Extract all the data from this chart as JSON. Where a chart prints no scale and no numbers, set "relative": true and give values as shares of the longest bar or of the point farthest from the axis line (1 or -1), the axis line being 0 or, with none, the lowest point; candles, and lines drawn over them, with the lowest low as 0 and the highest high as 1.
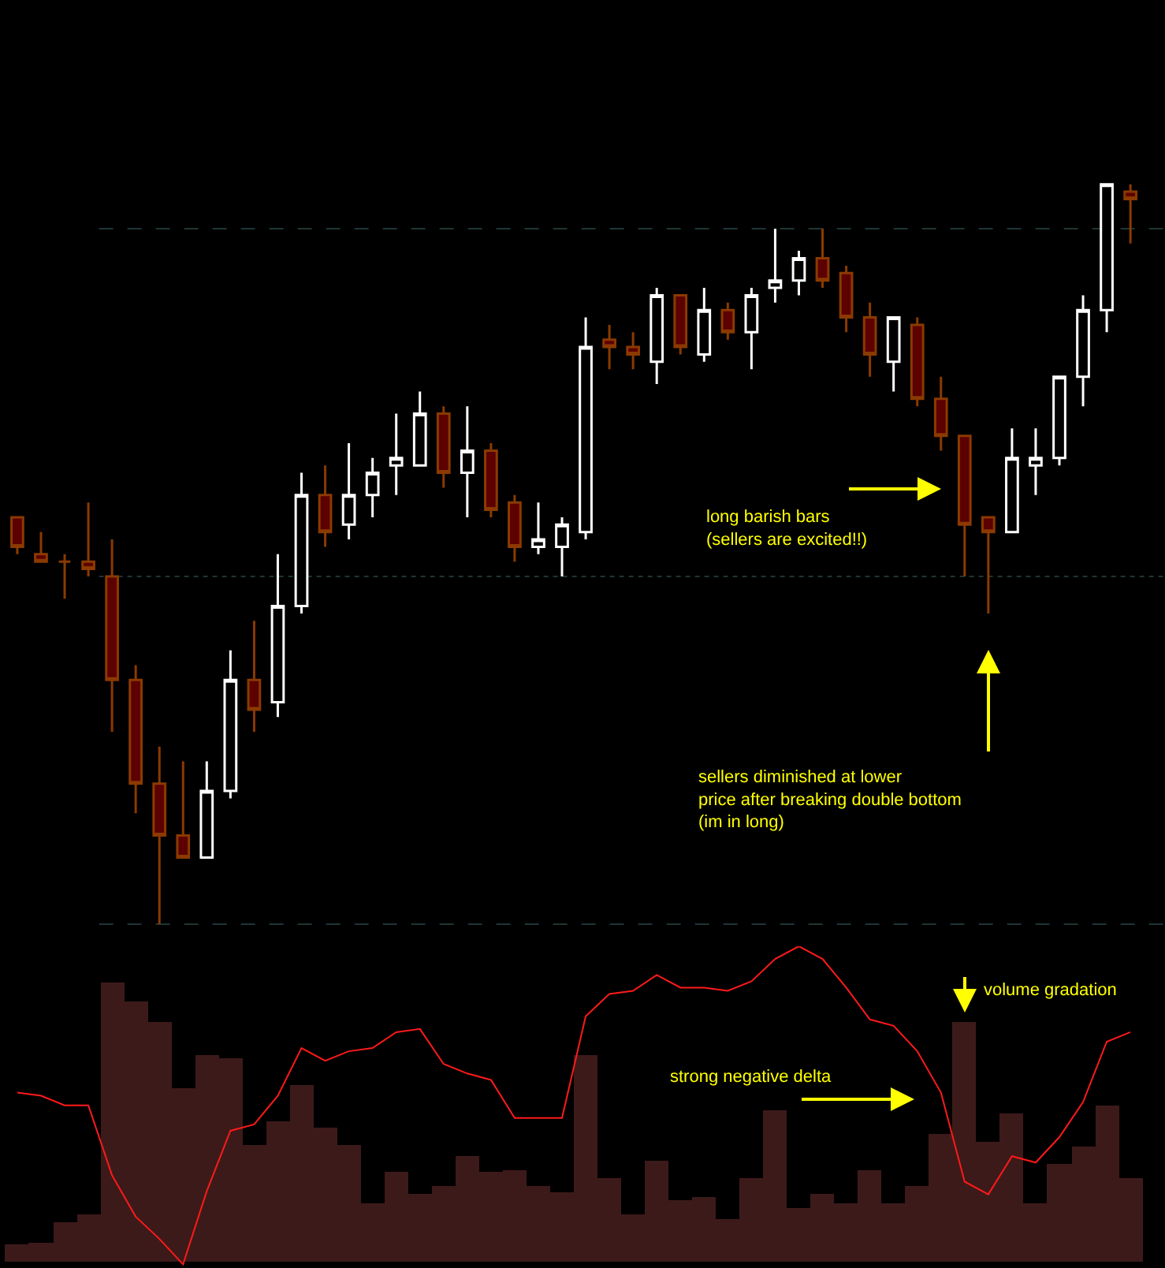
{
  "chart_data": [
    {
      "type": "candlestick",
      "relative": true,
      "categories": [
        null,
        null,
        null,
        null,
        null,
        null,
        null,
        null,
        null,
        null,
        null,
        null,
        null,
        null,
        null,
        null,
        null,
        null,
        null,
        null,
        null,
        null,
        null,
        null,
        null,
        null,
        null,
        null,
        null,
        null,
        null,
        null,
        null,
        null,
        null,
        null,
        null,
        null,
        null,
        null,
        null,
        null,
        null,
        null,
        null,
        null,
        null,
        null
      ],
      "ohlc": [
        [
          0.55,
          0.55,
          0.5,
          0.51
        ],
        [
          0.5,
          0.53,
          0.49,
          0.49
        ],
        [
          0.49,
          0.5,
          0.44,
          0.49
        ],
        [
          0.49,
          0.57,
          0.47,
          0.48
        ],
        [
          0.47,
          0.52,
          0.26,
          0.33
        ],
        [
          0.33,
          0.35,
          0.15,
          0.19
        ],
        [
          0.19,
          0.24,
          0,
          0.12
        ],
        [
          0.12,
          0.22,
          0.09,
          0.09
        ],
        [
          0.09,
          0.22,
          0.09,
          0.18
        ],
        [
          0.18,
          0.37,
          0.17,
          0.33
        ],
        [
          0.33,
          0.41,
          0.26,
          0.29
        ],
        [
          0.3,
          0.5,
          0.28,
          0.43
        ],
        [
          0.43,
          0.61,
          0.42,
          0.58
        ],
        [
          0.58,
          0.62,
          0.51,
          0.53
        ],
        [
          0.54,
          0.65,
          0.52,
          0.58
        ],
        [
          0.58,
          0.63,
          0.55,
          0.61
        ],
        [
          0.62,
          0.69,
          0.58,
          0.63
        ],
        [
          0.62,
          0.72,
          0.62,
          0.69
        ],
        [
          0.69,
          0.7,
          0.59,
          0.61
        ],
        [
          0.61,
          0.7,
          0.55,
          0.64
        ],
        [
          0.64,
          0.65,
          0.55,
          0.56
        ],
        [
          0.57,
          0.58,
          0.49,
          0.51
        ],
        [
          0.51,
          0.57,
          0.5,
          0.52
        ],
        [
          0.51,
          0.55,
          0.47,
          0.54
        ],
        [
          0.53,
          0.82,
          0.52,
          0.78
        ],
        [
          0.79,
          0.81,
          0.75,
          0.78
        ],
        [
          0.78,
          0.8,
          0.75,
          0.77
        ],
        [
          0.76,
          0.86,
          0.73,
          0.85
        ],
        [
          0.85,
          0.85,
          0.77,
          0.78
        ],
        [
          0.77,
          0.86,
          0.76,
          0.83
        ],
        [
          0.83,
          0.84,
          0.79,
          0.8
        ],
        [
          0.8,
          0.86,
          0.75,
          0.85
        ],
        [
          0.86,
          0.94,
          0.84,
          0.87
        ],
        [
          0.87,
          0.91,
          0.85,
          0.9
        ],
        [
          0.9,
          0.94,
          0.86,
          0.87
        ],
        [
          0.88,
          0.89,
          0.8,
          0.82
        ],
        [
          0.82,
          0.84,
          0.74,
          0.77
        ],
        [
          0.76,
          0.82,
          0.72,
          0.82
        ],
        [
          0.81,
          0.82,
          0.7,
          0.71
        ],
        [
          0.71,
          0.74,
          0.64,
          0.66
        ],
        [
          0.66,
          0.66,
          0.47,
          0.54
        ],
        [
          0.55,
          0.55,
          0.42,
          0.53
        ],
        [
          0.53,
          0.67,
          0.53,
          0.63
        ],
        [
          0.62,
          0.67,
          0.58,
          0.63
        ],
        [
          0.63,
          0.74,
          0.62,
          0.74
        ],
        [
          0.74,
          0.85,
          0.7,
          0.83
        ],
        [
          0.83,
          1,
          0.8,
          1
        ],
        [
          0.99,
          1,
          0.92,
          0.98
        ]
      ],
      "ref_lines": [
        {
          "axis": "y",
          "value": 0.94,
          "color": "#1e3535",
          "line_style": "dashed"
        },
        {
          "axis": "y",
          "value": 0,
          "color": "#1e3535",
          "line_style": "dashed"
        },
        {
          "axis": "y",
          "value": 0.47,
          "color": "#1e3535",
          "line_style": "dotted"
        }
      ],
      "annotations": [
        "long barish bars\n(sellers are excited!!)",
        "sellers diminished at lower\nprice after breaking double bottom\n(im in long)"
      ]
    },
    {
      "type": "bar",
      "relative": true,
      "categories": [
        null,
        null,
        null,
        null,
        null,
        null,
        null,
        null,
        null,
        null,
        null,
        null,
        null,
        null,
        null,
        null,
        null,
        null,
        null,
        null,
        null,
        null,
        null,
        null,
        null,
        null,
        null,
        null,
        null,
        null,
        null,
        null,
        null,
        null,
        null,
        null,
        null,
        null,
        null,
        null,
        null,
        null,
        null,
        null,
        null,
        null,
        null,
        null
      ],
      "series": [
        {
          "type": "bar",
          "color": "#3d1a1a",
          "values": [
            0.06,
            0.07,
            0.14,
            0.17,
            1,
            0.93,
            0.86,
            0.62,
            0.74,
            0.73,
            0.42,
            0.5,
            0.63,
            0.48,
            0.42,
            0.21,
            0.32,
            0.24,
            0.27,
            0.38,
            0.32,
            0.33,
            0.27,
            0.25,
            0.74,
            0.3,
            0.17,
            0.36,
            0.22,
            0.23,
            0.15,
            0.3,
            0.54,
            0.19,
            0.24,
            0.21,
            0.33,
            0.21,
            0.27,
            0.46,
            0.86,
            0.43,
            0.53,
            0.21,
            0.35,
            0.41,
            0.56,
            0.3
          ]
        },
        {
          "type": "line",
          "axis": "y2",
          "color": "#ff1a1a",
          "values": [
            0.54,
            0.53,
            0.5,
            0.5,
            0.28,
            0.15,
            0.08,
            0,
            0.23,
            0.42,
            0.44,
            0.53,
            0.68,
            0.64,
            0.67,
            0.68,
            0.73,
            0.74,
            0.63,
            0.6,
            0.58,
            0.46,
            0.46,
            0.46,
            0.78,
            0.85,
            0.86,
            0.91,
            0.87,
            0.87,
            0.86,
            0.89,
            0.96,
            1,
            0.96,
            0.87,
            0.77,
            0.75,
            0.67,
            0.54,
            0.26,
            0.22,
            0.34,
            0.32,
            0.4,
            0.51,
            0.7,
            0.73
          ]
        }
      ],
      "annotations": [
        "strong negative delta",
        "volume gradation"
      ]
    }
  ]
}
